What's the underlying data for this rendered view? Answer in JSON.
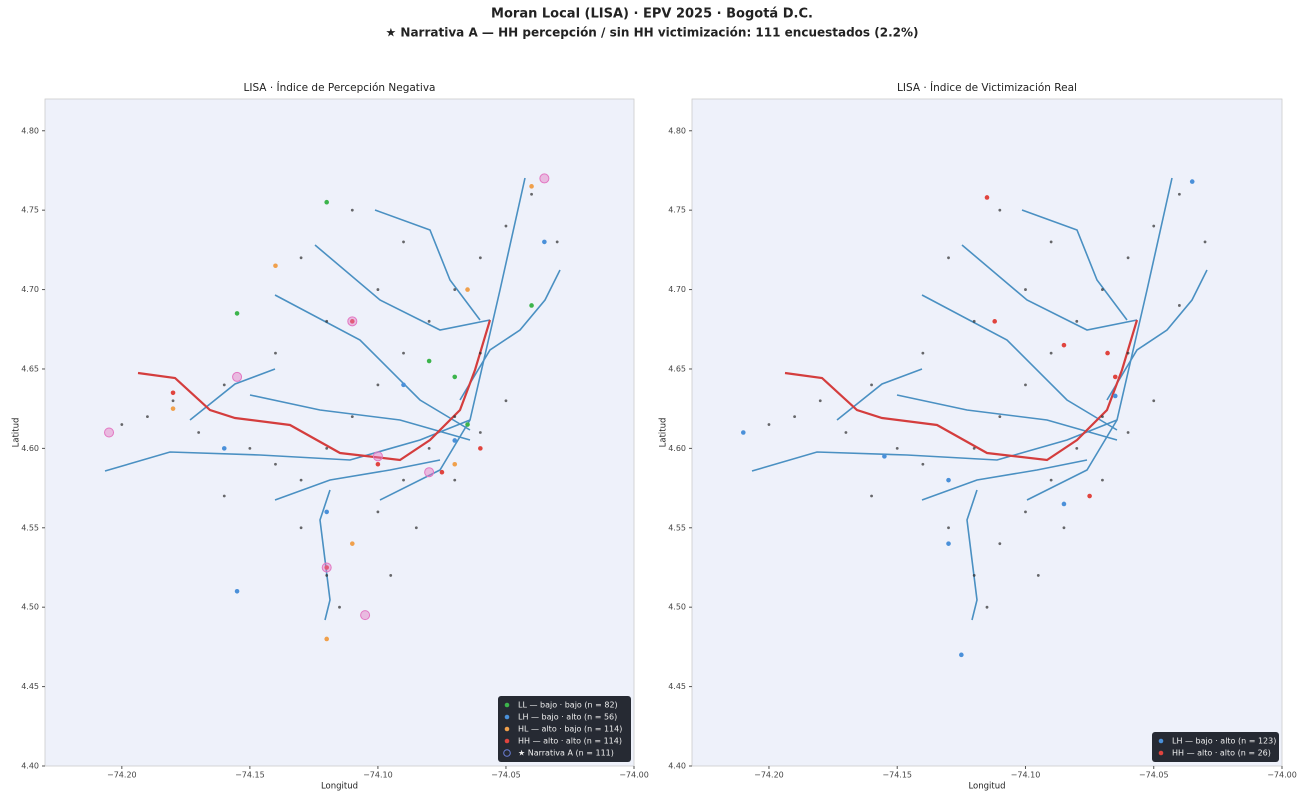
{
  "title": "Moran Local (LISA) · EPV 2025 · Bogotá D.C.",
  "subtitle": "★ Narrativa A — HH percepción / sin HH victimización: 111 encuestados (2.2%)",
  "chart_data": [
    {
      "type": "scatter",
      "title": "LISA · Índice de Percepción Negativa",
      "x_label": "Longitud",
      "y_label": "Latitud",
      "xlim": [
        -74.23,
        -74.0
      ],
      "ylim": [
        4.4,
        4.82
      ],
      "xticks": [
        {
          "value": -74.2,
          "label": "−74.20"
        },
        {
          "value": -74.15,
          "label": "−74.15"
        },
        {
          "value": -74.1,
          "label": "−74.10"
        },
        {
          "value": -74.05,
          "label": "−74.05"
        },
        {
          "value": -74.0,
          "label": "−74.00"
        }
      ],
      "yticks": [
        {
          "value": 4.4,
          "label": "4.40"
        },
        {
          "value": 4.45,
          "label": "4.45"
        },
        {
          "value": 4.5,
          "label": "4.50"
        },
        {
          "value": 4.55,
          "label": "4.55"
        },
        {
          "value": 4.6,
          "label": "4.60"
        },
        {
          "value": 4.65,
          "label": "4.65"
        },
        {
          "value": 4.7,
          "label": "4.70"
        },
        {
          "value": 4.75,
          "label": "4.75"
        },
        {
          "value": 4.8,
          "label": "4.80"
        }
      ],
      "legend": "lower right",
      "series": [
        {
          "color": "#2b2b2b",
          "marker": "dot",
          "x": [
            -74.19,
            -74.18,
            -74.16,
            -74.15,
            -74.14,
            -74.13,
            -74.12,
            -74.11,
            -74.1,
            -74.09,
            -74.08,
            -74.07,
            -74.06,
            -74.05,
            -74.04,
            -74.03,
            -74.04,
            -74.06,
            -74.07,
            -74.08,
            -74.09,
            -74.1,
            -74.11,
            -74.12,
            -74.115,
            -74.13,
            -74.14,
            -74.12,
            -74.1,
            -74.09,
            -74.11,
            -74.13,
            -74.17,
            -74.2,
            -74.16,
            -74.07,
            -74.06,
            -74.05,
            -74.085,
            -74.095
          ],
          "y": [
            4.62,
            4.63,
            4.64,
            4.6,
            4.59,
            4.58,
            4.6,
            4.62,
            4.64,
            4.66,
            4.68,
            4.7,
            4.72,
            4.74,
            4.76,
            4.73,
            4.69,
            4.66,
            4.62,
            4.6,
            4.58,
            4.56,
            4.54,
            4.52,
            4.5,
            4.55,
            4.66,
            4.68,
            4.7,
            4.73,
            4.75,
            4.72,
            4.61,
            4.615,
            4.57,
            4.58,
            4.61,
            4.63,
            4.55,
            4.52
          ]
        },
        {
          "name": "LL — bajo · bajo  (n = 82)",
          "color": "#3cb44b",
          "marker": "point",
          "x": [
            -74.07,
            -74.08,
            -74.155,
            -74.04,
            -74.065,
            -74.12
          ],
          "y": [
            4.645,
            4.655,
            4.685,
            4.69,
            4.615,
            4.755
          ]
        },
        {
          "name": "LH — bajo · alto  (n = 56)",
          "color": "#4a90d9",
          "marker": "point",
          "x": [
            -74.07,
            -74.09,
            -74.16,
            -74.155,
            -74.035,
            -74.12
          ],
          "y": [
            4.605,
            4.64,
            4.6,
            4.51,
            4.73,
            4.56
          ]
        },
        {
          "name": "HL — alto · bajo  (n = 114)",
          "color": "#f0a04b",
          "marker": "point",
          "x": [
            -74.07,
            -74.18,
            -74.14,
            -74.065,
            -74.12,
            -74.11,
            -74.04
          ],
          "y": [
            4.59,
            4.625,
            4.715,
            4.7,
            4.48,
            4.54,
            4.765
          ]
        },
        {
          "name": "HH — alto · alto  (n = 114)",
          "color": "#e0443e",
          "marker": "point",
          "x": [
            -74.06,
            -74.11,
            -74.12,
            -74.075,
            -74.18,
            -74.1
          ],
          "y": [
            4.6,
            4.68,
            4.525,
            4.585,
            4.635,
            4.59
          ]
        },
        {
          "name": "★ Narrativa A  (n = 111)",
          "color": "#e377c2",
          "marker": "ring",
          "x": [
            -74.11,
            -74.12,
            -74.105,
            -74.155,
            -74.08,
            -74.035,
            -74.1,
            -74.205
          ],
          "y": [
            4.68,
            4.525,
            4.495,
            4.645,
            4.585,
            4.77,
            4.595,
            4.61
          ]
        }
      ]
    },
    {
      "type": "scatter",
      "title": "LISA · Índice de Victimización Real",
      "x_label": "Longitud",
      "y_label": "Latitud",
      "xlim": [
        -74.23,
        -74.0
      ],
      "ylim": [
        4.4,
        4.82
      ],
      "xticks": [
        {
          "value": -74.2,
          "label": "−74.20"
        },
        {
          "value": -74.15,
          "label": "−74.15"
        },
        {
          "value": -74.1,
          "label": "−74.10"
        },
        {
          "value": -74.05,
          "label": "−74.05"
        },
        {
          "value": -74.0,
          "label": "−74.00"
        }
      ],
      "yticks": [
        {
          "value": 4.4,
          "label": "4.40"
        },
        {
          "value": 4.45,
          "label": "4.45"
        },
        {
          "value": 4.5,
          "label": "4.50"
        },
        {
          "value": 4.55,
          "label": "4.55"
        },
        {
          "value": 4.6,
          "label": "4.60"
        },
        {
          "value": 4.65,
          "label": "4.65"
        },
        {
          "value": 4.7,
          "label": "4.70"
        },
        {
          "value": 4.75,
          "label": "4.75"
        },
        {
          "value": 4.8,
          "label": "4.80"
        }
      ],
      "legend": "lower right",
      "series": [
        {
          "color": "#2b2b2b",
          "marker": "dot",
          "x": [
            -74.19,
            -74.18,
            -74.16,
            -74.15,
            -74.14,
            -74.13,
            -74.12,
            -74.11,
            -74.1,
            -74.09,
            -74.08,
            -74.07,
            -74.06,
            -74.05,
            -74.04,
            -74.03,
            -74.04,
            -74.06,
            -74.07,
            -74.08,
            -74.09,
            -74.1,
            -74.11,
            -74.12,
            -74.115,
            -74.13,
            -74.14,
            -74.12,
            -74.1,
            -74.09,
            -74.11,
            -74.13,
            -74.17,
            -74.2,
            -74.16,
            -74.07,
            -74.06,
            -74.05,
            -74.085,
            -74.095
          ],
          "y": [
            4.62,
            4.63,
            4.64,
            4.6,
            4.59,
            4.58,
            4.6,
            4.62,
            4.64,
            4.66,
            4.68,
            4.7,
            4.72,
            4.74,
            4.76,
            4.73,
            4.69,
            4.66,
            4.62,
            4.6,
            4.58,
            4.56,
            4.54,
            4.52,
            4.5,
            4.55,
            4.66,
            4.68,
            4.7,
            4.73,
            4.75,
            4.72,
            4.61,
            4.615,
            4.57,
            4.58,
            4.61,
            4.63,
            4.55,
            4.52
          ]
        },
        {
          "name": "LH — bajo · alto  (n = 123)",
          "color": "#4a90d9",
          "marker": "point",
          "x": [
            -74.21,
            -74.155,
            -74.13,
            -74.085,
            -74.065,
            -74.035,
            -74.125,
            -74.13
          ],
          "y": [
            4.61,
            4.595,
            4.54,
            4.565,
            4.633,
            4.768,
            4.47,
            4.58
          ]
        },
        {
          "name": "HH — alto · alto  (n = 26)",
          "color": "#e0443e",
          "marker": "point",
          "x": [
            -74.115,
            -74.112,
            -74.085,
            -74.068,
            -74.075,
            -74.065
          ],
          "y": [
            4.758,
            4.68,
            4.665,
            4.66,
            4.57,
            4.645
          ]
        }
      ]
    }
  ]
}
